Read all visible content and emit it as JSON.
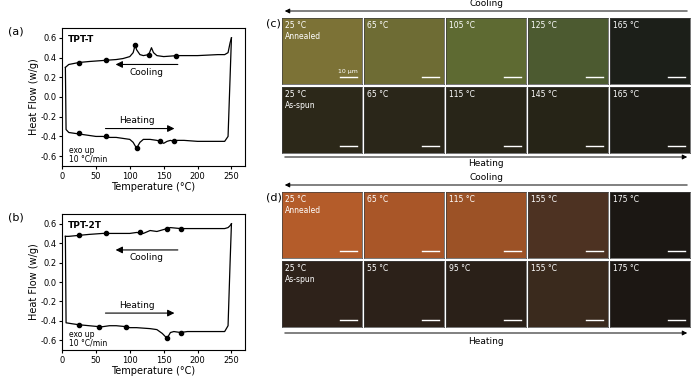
{
  "chart_data": [
    {
      "type": "line",
      "panel_label": "(a)",
      "title": "TPT-T",
      "x_label": "Temperature (°C)",
      "y_label": "Heat Flow (w/g)",
      "annotations": [
        "Cooling",
        "Heating",
        "exo up",
        "10 °C/min"
      ],
      "xlim": [
        0,
        270
      ],
      "ylim": [
        -0.7,
        0.7
      ],
      "xticks": [
        0,
        50,
        100,
        150,
        200,
        250
      ],
      "yticks": [
        -0.6,
        -0.4,
        -0.2,
        0.0,
        0.2,
        0.4,
        0.6
      ],
      "series": [
        {
          "type": "line",
          "color": "#000000",
          "x": [
            250,
            248,
            245,
            240,
            230,
            200,
            170,
            150,
            140,
            135,
            132,
            128,
            120,
            115,
            110,
            108,
            105,
            100,
            90,
            80,
            60,
            40,
            25,
            10,
            5
          ],
          "values": [
            0.6,
            0.55,
            0.45,
            0.43,
            0.43,
            0.42,
            0.42,
            0.41,
            0.42,
            0.45,
            0.5,
            0.43,
            0.42,
            0.43,
            0.48,
            0.53,
            0.45,
            0.41,
            0.39,
            0.38,
            0.37,
            0.36,
            0.35,
            0.33,
            0.3
          ]
        },
        {
          "type": "line",
          "color": "#000000",
          "x": [
            5,
            6,
            10,
            20,
            30,
            40,
            50,
            60,
            70,
            80,
            90,
            100,
            105,
            110,
            115,
            120,
            130,
            140,
            145,
            150,
            155,
            160,
            165,
            170,
            180,
            200,
            220,
            240,
            245,
            248,
            250
          ],
          "values": [
            0.3,
            -0.33,
            -0.36,
            -0.37,
            -0.38,
            -0.39,
            -0.4,
            -0.4,
            -0.41,
            -0.41,
            -0.42,
            -0.43,
            -0.46,
            -0.52,
            -0.46,
            -0.43,
            -0.43,
            -0.44,
            -0.45,
            -0.47,
            -0.45,
            -0.44,
            -0.45,
            -0.44,
            -0.44,
            -0.45,
            -0.45,
            -0.45,
            -0.4,
            0.2,
            0.6
          ]
        },
        {
          "type": "scatter",
          "marker": "o",
          "color": "#000000",
          "x": [
            25,
            65,
            110,
            145,
            165
          ],
          "values": [
            -0.37,
            -0.4,
            -0.52,
            -0.45,
            -0.45
          ]
        },
        {
          "type": "scatter",
          "marker": "o",
          "color": "#000000",
          "x": [
            25,
            65,
            108,
            128,
            168
          ],
          "values": [
            0.35,
            0.38,
            0.53,
            0.43,
            0.42
          ]
        }
      ]
    },
    {
      "type": "line",
      "panel_label": "(b)",
      "title": "TPT-2T",
      "x_label": "Temperature (°C)",
      "y_label": "Heat Flow (w/g)",
      "annotations": [
        "Cooling",
        "Heating",
        "exo up",
        "10 °C/min"
      ],
      "xlim": [
        0,
        270
      ],
      "ylim": [
        -0.7,
        0.7
      ],
      "xticks": [
        0,
        50,
        100,
        150,
        200,
        250
      ],
      "yticks": [
        -0.6,
        -0.4,
        -0.2,
        0.0,
        0.2,
        0.4,
        0.6
      ],
      "series": [
        {
          "type": "line",
          "color": "#000000",
          "x": [
            250,
            248,
            245,
            240,
            220,
            190,
            175,
            160,
            150,
            140,
            130,
            120,
            110,
            100,
            80,
            60,
            40,
            25,
            10,
            5
          ],
          "values": [
            0.6,
            0.58,
            0.56,
            0.55,
            0.55,
            0.55,
            0.55,
            0.56,
            0.54,
            0.52,
            0.53,
            0.5,
            0.51,
            0.5,
            0.5,
            0.5,
            0.49,
            0.48,
            0.47,
            0.47
          ]
        },
        {
          "type": "line",
          "color": "#000000",
          "x": [
            5,
            6,
            15,
            25,
            40,
            55,
            60,
            70,
            80,
            95,
            100,
            110,
            130,
            140,
            148,
            155,
            160,
            165,
            175,
            185,
            200,
            220,
            240,
            245,
            248,
            250
          ],
          "values": [
            0.47,
            -0.42,
            -0.43,
            -0.44,
            -0.45,
            -0.46,
            -0.46,
            -0.45,
            -0.45,
            -0.46,
            -0.47,
            -0.47,
            -0.48,
            -0.49,
            -0.53,
            -0.58,
            -0.52,
            -0.51,
            -0.52,
            -0.51,
            -0.51,
            -0.51,
            -0.51,
            -0.45,
            0.2,
            0.6
          ]
        },
        {
          "type": "scatter",
          "marker": "o",
          "color": "#000000",
          "x": [
            25,
            55,
            95,
            155,
            175
          ],
          "values": [
            -0.44,
            -0.46,
            -0.46,
            -0.58,
            -0.52
          ]
        },
        {
          "type": "scatter",
          "marker": "o",
          "color": "#000000",
          "x": [
            25,
            65,
            115,
            155,
            175
          ],
          "values": [
            0.48,
            0.5,
            0.51,
            0.55,
            0.55
          ]
        }
      ]
    }
  ],
  "micrographs": [
    {
      "panel_label": "(c)",
      "top_arrow": "Cooling",
      "bottom_arrow": "Heating",
      "scale_bar": "10 μm",
      "rows": [
        [
          "25 °C\nAnnealed",
          "65 °C",
          "105 °C",
          "125 °C",
          "165 °C"
        ],
        [
          "25 °C\nAs-spun",
          "65 °C",
          "115 °C",
          "145 °C",
          "165 °C"
        ]
      ]
    },
    {
      "panel_label": "(d)",
      "top_arrow": "Cooling",
      "bottom_arrow": "Heating",
      "rows": [
        [
          "25 °C\nAnnealed",
          "65 °C",
          "115 °C",
          "155 °C",
          "175 °C"
        ],
        [
          "25 °C\nAs-spun",
          "55 °C",
          "95 °C",
          "155 °C",
          "175 °C"
        ]
      ]
    }
  ]
}
